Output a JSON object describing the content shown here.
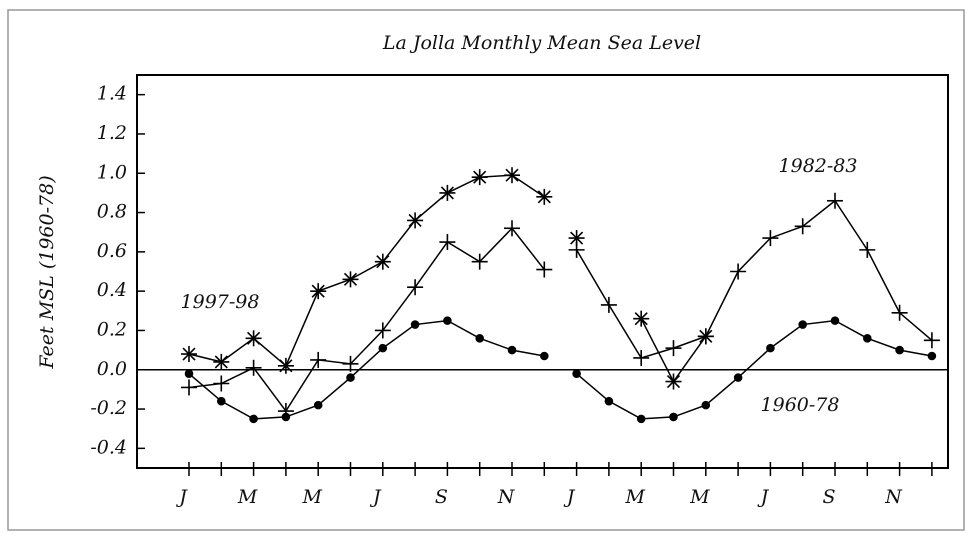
{
  "chart_data": {
    "type": "line",
    "title": "La Jolla Monthly Mean Sea Level",
    "y_label": "Feet MSL (1960-78)",
    "categories": [
      "J",
      null,
      "M",
      null,
      "M",
      null,
      "J",
      null,
      "S",
      null,
      "N",
      null,
      "J",
      null,
      "M",
      null,
      "M",
      null,
      "J",
      null,
      "S",
      null,
      "N",
      null
    ],
    "series": [
      {
        "name": "1997-98",
        "color": "#000000",
        "marker": "asterisk",
        "values": [
          0.08,
          0.04,
          0.16,
          0.02,
          0.4,
          0.46,
          0.55,
          0.76,
          0.9,
          0.98,
          0.99,
          0.88,
          0.67,
          null,
          0.26,
          -0.06,
          0.17,
          null,
          null,
          null,
          null,
          null,
          null,
          null
        ]
      },
      {
        "name": "1982-83",
        "color": "#000000",
        "marker": "plus",
        "values": [
          -0.09,
          -0.07,
          0.01,
          -0.21,
          0.05,
          0.03,
          0.2,
          0.42,
          0.65,
          0.55,
          0.72,
          0.51,
          0.61,
          0.33,
          0.06,
          0.11,
          0.17,
          0.5,
          0.67,
          0.73,
          0.86,
          0.61,
          0.29,
          0.15
        ]
      },
      {
        "name": "1960-78",
        "color": "#000000",
        "marker": "dot",
        "values": [
          -0.02,
          -0.16,
          -0.25,
          -0.24,
          -0.18,
          -0.04,
          0.11,
          0.23,
          0.25,
          0.16,
          0.1,
          0.07,
          -0.02,
          -0.16,
          -0.25,
          -0.24,
          -0.18,
          -0.04,
          0.11,
          0.23,
          0.25,
          0.16,
          0.1,
          0.07
        ]
      }
    ],
    "ylim": [
      -0.5,
      1.5
    ],
    "yticks": [
      -0.4,
      -0.2,
      {
        "value": 0,
        "label": "0.0"
      },
      0.2,
      0.4,
      0.6,
      0.8,
      {
        "value": 1,
        "label": "1.0"
      },
      1.2,
      1.4
    ],
    "hline": 0
  }
}
